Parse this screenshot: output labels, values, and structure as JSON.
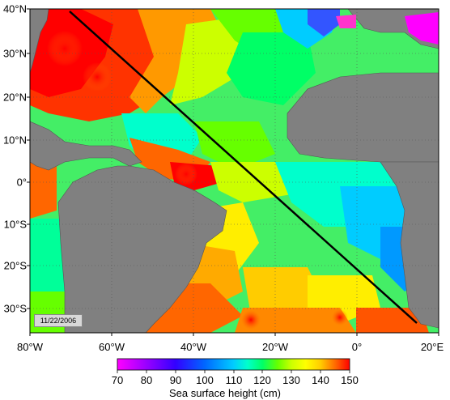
{
  "map": {
    "latitude_labels": [
      "40°N",
      "30°N",
      "20°N",
      "10°N",
      "0°",
      "10°S",
      "20°S",
      "30°S"
    ],
    "longitude_labels": [
      "80°W",
      "60°W",
      "40°W",
      "20°W",
      "0°",
      "20°E"
    ],
    "date_stamp": "11/22/2006",
    "track_line": "section line",
    "land_color": "#808080",
    "ocean_colors_low_to_high": [
      "#ff00ff",
      "#9900ff",
      "#3300ff",
      "#0066ff",
      "#00ccff",
      "#00ffcc",
      "#00ff66",
      "#66ff00",
      "#ccff00",
      "#ffff00",
      "#ffcc00",
      "#ff6600",
      "#ff0000"
    ]
  },
  "colorbar": {
    "tick_labels": [
      "70",
      "80",
      "90",
      "100",
      "110",
      "120",
      "130",
      "140",
      "150"
    ],
    "title": "Sea surface height (cm)",
    "min": 70,
    "max": 150
  }
}
